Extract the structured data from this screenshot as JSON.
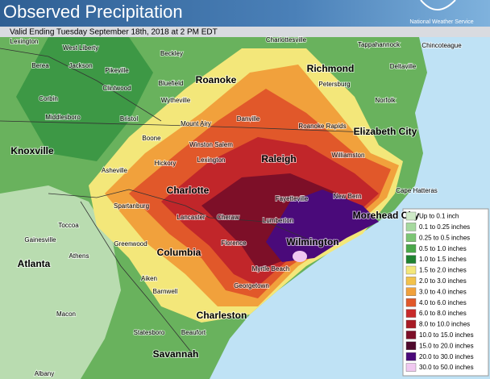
{
  "header": {
    "title": "Observed Precipitation",
    "agency": "National Weather Service"
  },
  "subtitle": "Valid Ending Tuesday September 18th, 2018 at 2 PM EDT",
  "cities": [
    "Lexington",
    "West Liberty",
    "Charlottesville",
    "Tappahannock",
    "Chincoteague",
    "Beckley",
    "Berea",
    "Jackson",
    "Pikeville",
    "Richmond",
    "Deltaville",
    "Clintwood",
    "Bluefield",
    "Roanoke",
    "Petersburg",
    "Corbin",
    "Wytheville",
    "Norfolk",
    "Middlesboro",
    "Bristol",
    "Danville",
    "Mount Airy",
    "Roanoke Rapids",
    "Elizabeth City",
    "Knoxville",
    "Boone",
    "Winston Salem",
    "Williamston",
    "Raleigh",
    "Lexington",
    "Hickory",
    "Asheville",
    "Fayetteville",
    "Cape Hatteras",
    "New Bern",
    "Charlotte",
    "Spartanburg",
    "Morehead City",
    "Lancaster",
    "Cheraw",
    "Lumberton",
    "Toccoa",
    "Gainesville",
    "Greenwood",
    "Wilmington",
    "Florence",
    "Athens",
    "Atlanta",
    "Columbia",
    "Myrtle Beach",
    "Aiken",
    "Georgetown",
    "Barnwell",
    "Charleston",
    "Macon",
    "Statesboro",
    "Beaufort",
    "Savannah",
    "Albany"
  ],
  "legend": [
    {
      "label": "Up to 0.1 inch",
      "color": "#cfeac8"
    },
    {
      "label": "0.1 to 0.25 inches",
      "color": "#a6d99e"
    },
    {
      "label": "0.25 to 0.5 inches",
      "color": "#7cc574"
    },
    {
      "label": "0.5 to 1.0 inches",
      "color": "#4aa84a"
    },
    {
      "label": "1.0 to 1.5 inches",
      "color": "#1f8231"
    },
    {
      "label": "1.5 to 2.0 inches",
      "color": "#f3e77a"
    },
    {
      "label": "2.0 to 3.0 inches",
      "color": "#f2c24b"
    },
    {
      "label": "3.0 to 4.0 inches",
      "color": "#f1a13c"
    },
    {
      "label": "4.0 to 6.0 inches",
      "color": "#e1582a"
    },
    {
      "label": "6.0 to 8.0 inches",
      "color": "#c82a2a"
    },
    {
      "label": "8.0 to 10.0 inches",
      "color": "#a81a24"
    },
    {
      "label": "10.0 to 15.0 inches",
      "color": "#7d0f28"
    },
    {
      "label": "15.0 to 20.0 inches",
      "color": "#4f0a2c"
    },
    {
      "label": "20.0 to 30.0 inches",
      "color": "#4a0a7a"
    },
    {
      "label": "30.0 to 50.0 inches",
      "color": "#f0c8f0"
    }
  ]
}
